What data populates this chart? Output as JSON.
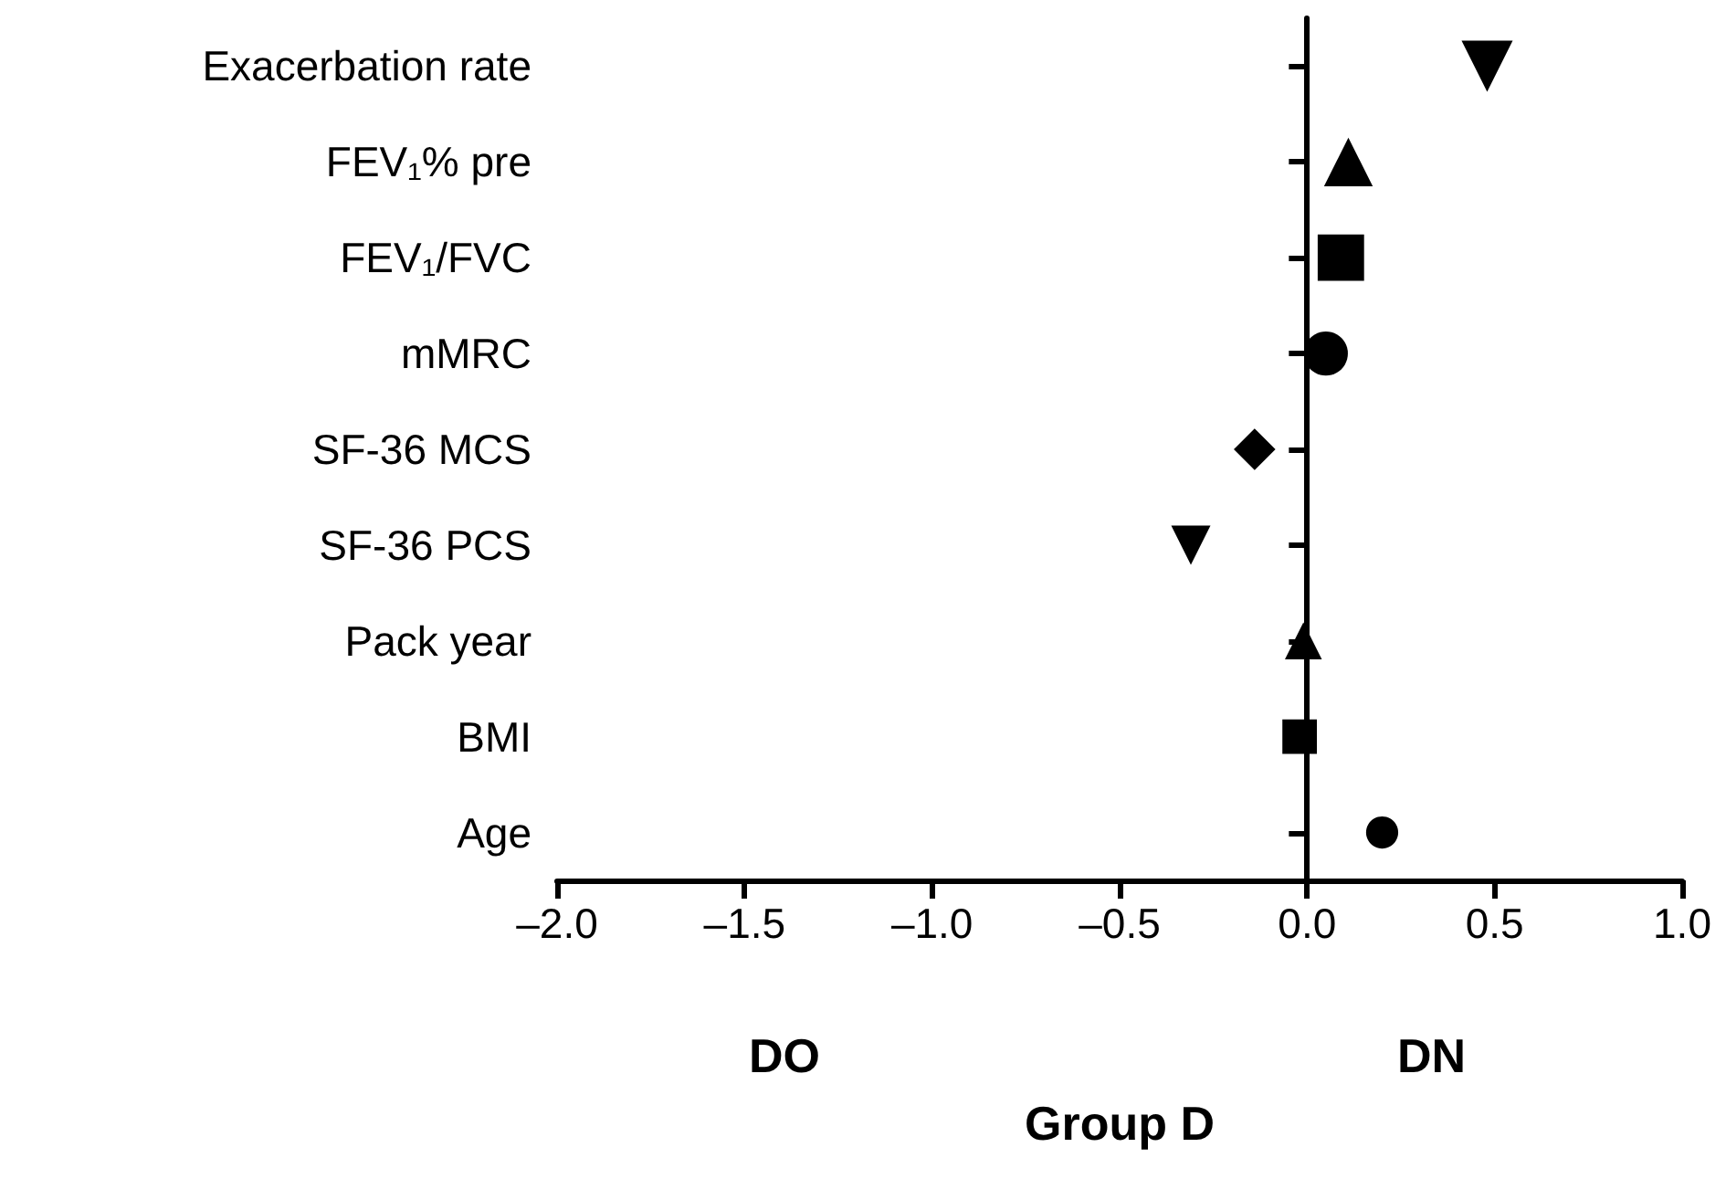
{
  "chart_data": {
    "type": "scatter",
    "orientation": "horizontal",
    "xlabel": "Group D",
    "categories": [
      "Exacerbation rate",
      "FEV₁% pre",
      "FEV₁/FVC",
      "mMRC",
      "SF-36 MCS",
      "SF-36 PCS",
      "Pack year",
      "BMI",
      "Age"
    ],
    "series": [
      {
        "color": "#000000",
        "marker": "triangle-down",
        "values": [
          0.48,
          null,
          null,
          null,
          null,
          -0.31,
          null,
          null,
          null
        ]
      },
      {
        "color": "#000000",
        "marker": "triangle",
        "values": [
          null,
          0.11,
          null,
          null,
          null,
          null,
          -0.01,
          null,
          null
        ]
      },
      {
        "color": "#000000",
        "marker": "square",
        "values": [
          null,
          null,
          0.09,
          null,
          null,
          null,
          null,
          -0.02,
          null
        ]
      },
      {
        "color": "#000000",
        "marker": "circle",
        "values": [
          null,
          null,
          null,
          0.05,
          null,
          null,
          null,
          null,
          0.2
        ]
      },
      {
        "color": "#000000",
        "marker": "diamond",
        "values": [
          null,
          null,
          null,
          null,
          -0.14,
          null,
          null,
          null,
          null
        ]
      }
    ],
    "xlim": [
      -2.0,
      1.0
    ],
    "xticks": [
      {
        "value": -2,
        "label": "–2.0"
      },
      {
        "value": -1.5,
        "label": "–1.5"
      },
      {
        "value": -1,
        "label": "–1.0"
      },
      {
        "value": -0.5,
        "label": "–0.5"
      },
      {
        "value": 0,
        "label": "0.0"
      },
      {
        "value": 0.5,
        "label": "0.5"
      },
      {
        "value": 1,
        "label": "1.0"
      }
    ],
    "ref_lines": [
      {
        "axis": "x",
        "value": 0,
        "color": "#000000"
      }
    ],
    "annotations": [
      "DO",
      "DN"
    ],
    "grid": false
  }
}
